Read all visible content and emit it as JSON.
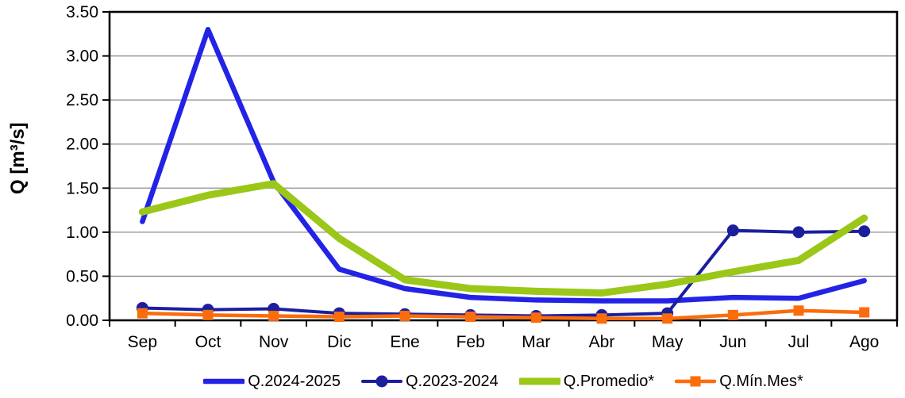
{
  "window": {
    "background": "#FFFFFF"
  },
  "chart_data": {
    "type": "line",
    "title": "",
    "xlabel": "",
    "ylabel": "Q [m³/s]",
    "x_categories": [
      "Sep",
      "Oct",
      "Nov",
      "Dic",
      "Ene",
      "Feb",
      "Mar",
      "Abr",
      "May",
      "Jun",
      "Jul",
      "Ago"
    ],
    "ylim": [
      0,
      3.5
    ],
    "ytick_labels": [
      "0.00",
      "0.50",
      "1.00",
      "1.50",
      "2.00",
      "2.50",
      "3.00",
      "3.50"
    ],
    "grid": "horizontal",
    "grid_color": "#8E8E8E",
    "axis_color": "#000000",
    "legend_position": "bottom",
    "series": [
      {
        "name": "Q.2024-2025",
        "color": "#2323E6",
        "line_width": 6.5,
        "marker": "none",
        "values": [
          1.12,
          3.3,
          1.57,
          0.58,
          0.36,
          0.26,
          0.23,
          0.22,
          0.22,
          0.26,
          0.25,
          0.45
        ]
      },
      {
        "name": "Q.2023-2024",
        "color": "#1B1F9E",
        "line_width": 4,
        "marker": "circle",
        "marker_size": 15,
        "values": [
          0.14,
          0.12,
          0.13,
          0.08,
          0.07,
          0.06,
          0.05,
          0.06,
          0.08,
          1.02,
          1.0,
          1.01
        ]
      },
      {
        "name": "Q.Promedio*",
        "color": "#9BC718",
        "line_width": 9,
        "marker": "none",
        "values": [
          1.23,
          1.42,
          1.55,
          0.93,
          0.46,
          0.36,
          0.33,
          0.31,
          0.41,
          0.55,
          0.68,
          1.16
        ]
      },
      {
        "name": "Q.Mín.Mes*",
        "color": "#FB6C0C",
        "line_width": 4.5,
        "marker": "square",
        "marker_size": 13,
        "values": [
          0.08,
          0.06,
          0.05,
          0.04,
          0.05,
          0.04,
          0.03,
          0.02,
          0.02,
          0.06,
          0.11,
          0.09
        ]
      }
    ]
  }
}
